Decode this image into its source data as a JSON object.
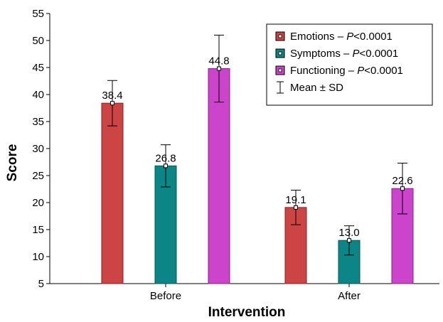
{
  "chart_data": {
    "type": "bar",
    "title": "",
    "xlabel": "Intervention",
    "ylabel": "Score",
    "ylim": [
      5,
      55
    ],
    "yticks": [
      5,
      10,
      15,
      20,
      25,
      30,
      35,
      40,
      45,
      50,
      55
    ],
    "grid": false,
    "legend_position": "top-right",
    "categories": [
      "Before",
      "After"
    ],
    "series": [
      {
        "name_prefix": "Emotions – ",
        "name_p": "P",
        "name_suffix": "<0.0001",
        "color": "#cc4444",
        "stroke": "#8a2020",
        "values": [
          38.4,
          19.1
        ],
        "sd": [
          4.2,
          3.2
        ],
        "labels": [
          "38.4",
          "19.1"
        ]
      },
      {
        "name_prefix": "Symptoms – ",
        "name_p": "P",
        "name_suffix": "<0.0001",
        "color": "#0b8585",
        "stroke": "#065858",
        "values": [
          26.8,
          13.0
        ],
        "sd": [
          3.9,
          2.7
        ],
        "labels": [
          "26.8",
          "13.0"
        ]
      },
      {
        "name_prefix": "Functioning – ",
        "name_p": "P",
        "name_suffix": "<0.0001",
        "color": "#cc44cc",
        "stroke": "#8a208a",
        "values": [
          44.8,
          22.6
        ],
        "sd": [
          6.2,
          4.7
        ],
        "labels": [
          "44.8",
          "22.6"
        ]
      }
    ],
    "legend_extra": "Mean ± SD"
  }
}
